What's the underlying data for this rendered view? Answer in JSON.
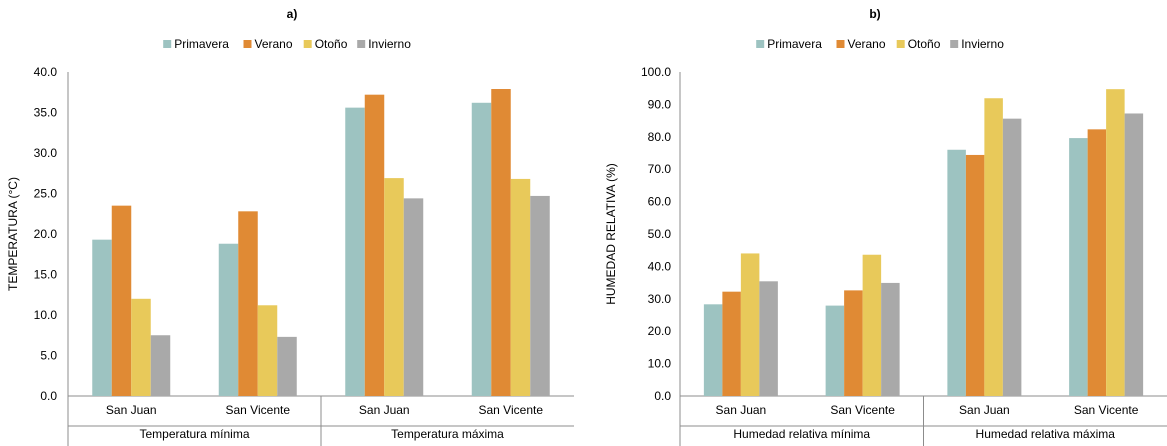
{
  "colors": {
    "Primavera": "#9dc3c1",
    "Verano": "#e08a34",
    "Otoño": "#e8c95a",
    "Invierno": "#a9a9a9"
  },
  "chart_data": [
    {
      "type": "bar",
      "title": "a)",
      "ylabel": "TEMPERATURA (°C)",
      "ylim": [
        0,
        40
      ],
      "ytick_step": 5,
      "ytick_labels": [
        "0.0",
        "5.0",
        "10.0",
        "15.0",
        "20.0",
        "25.0",
        "30.0",
        "35.0",
        "40.0"
      ],
      "legend": "top-center",
      "grid": false,
      "categories": [
        "San Juan",
        "San Vicente",
        "San Juan",
        "San Vicente"
      ],
      "groups": [
        "Temperatura mínima",
        "Temperatura máxima"
      ],
      "series": [
        {
          "name": "Primavera",
          "values": [
            19.3,
            18.8,
            35.6,
            36.2
          ]
        },
        {
          "name": "Verano",
          "values": [
            23.5,
            22.8,
            37.2,
            37.9
          ]
        },
        {
          "name": "Otoño",
          "values": [
            12.0,
            11.2,
            26.9,
            26.8
          ]
        },
        {
          "name": "Invierno",
          "values": [
            7.5,
            7.3,
            24.4,
            24.7
          ]
        }
      ]
    },
    {
      "type": "bar",
      "title": "b)",
      "ylabel": "HUMEDAD RELATIVA (%)",
      "ylim": [
        0,
        100
      ],
      "ytick_step": 10,
      "ytick_labels": [
        "0.0",
        "10.0",
        "20.0",
        "30.0",
        "40.0",
        "50.0",
        "60.0",
        "70.0",
        "80.0",
        "90.0",
        "100.0"
      ],
      "legend": "top-center",
      "grid": false,
      "categories": [
        "San Juan",
        "San Vicente",
        "San Juan",
        "San Vicente"
      ],
      "groups": [
        "Humedad relativa mínima",
        "Humedad relativa máxima"
      ],
      "series": [
        {
          "name": "Primavera",
          "values": [
            28.3,
            27.9,
            76.0,
            79.6
          ]
        },
        {
          "name": "Verano",
          "values": [
            32.2,
            32.6,
            74.4,
            82.3
          ]
        },
        {
          "name": "Otoño",
          "values": [
            44.0,
            43.6,
            91.9,
            94.7
          ]
        },
        {
          "name": "Invierno",
          "values": [
            35.4,
            34.9,
            85.6,
            87.2
          ]
        }
      ]
    }
  ]
}
